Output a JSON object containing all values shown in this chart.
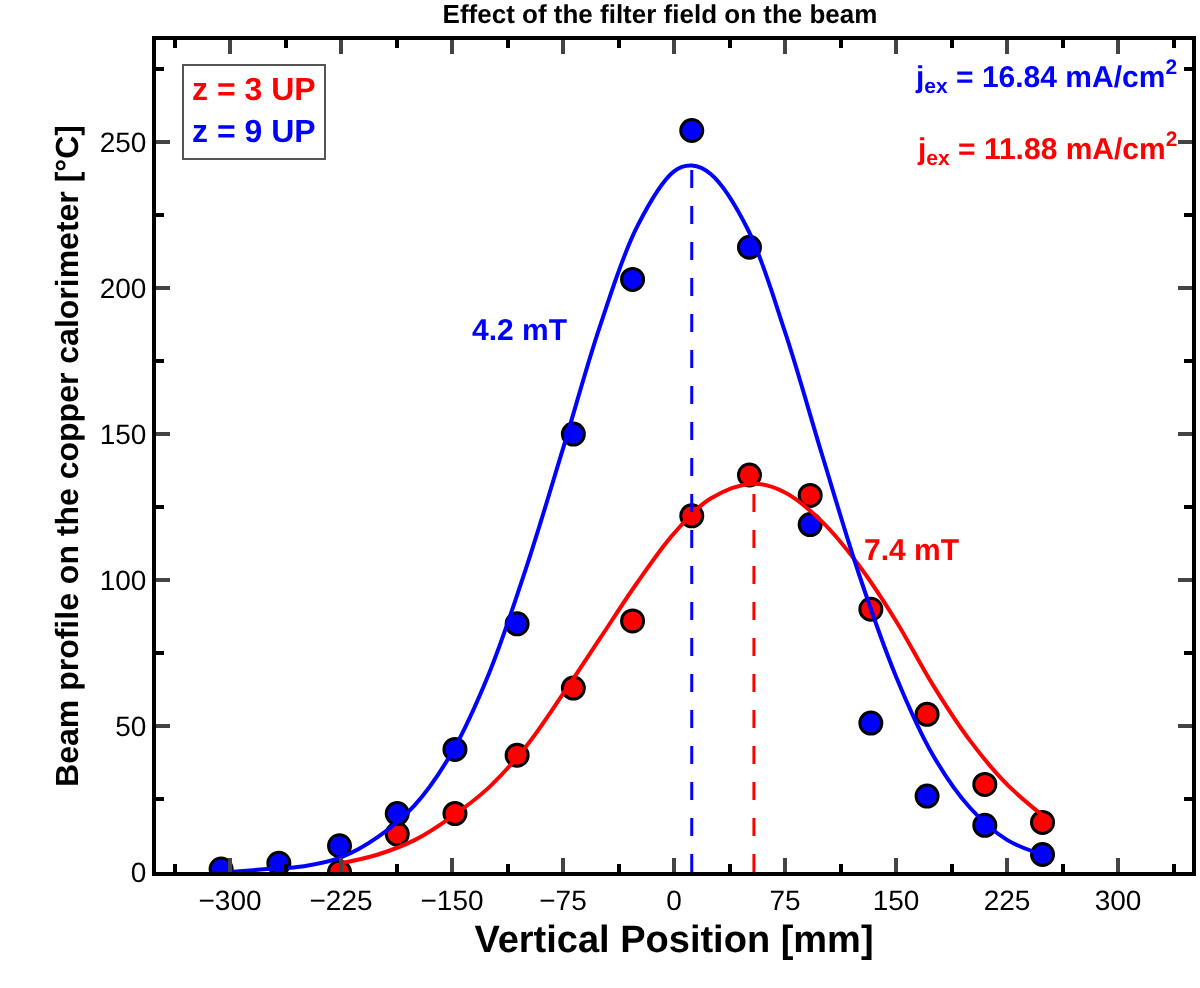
{
  "chart_data": {
    "type": "scatter",
    "title": "Effect of the filter field on the beam",
    "xlabel": "Vertical Position [mm]",
    "ylabel": "Beam profile on the copper calorimeter [°C]",
    "xlim": [
      -350,
      350
    ],
    "xticks": [
      -300,
      -225,
      -150,
      -75,
      0,
      75,
      150,
      225,
      300
    ],
    "ylim": [
      0,
      285
    ],
    "yticks": [
      0,
      50,
      100,
      150,
      200,
      250
    ],
    "grid": false,
    "legend": "top left",
    "marker": "circle",
    "series": [
      {
        "name": "z = 3 UP",
        "color": "#ff0000",
        "x": [
          -226,
          -187,
          -148,
          -106,
          -68,
          -28,
          12,
          51,
          92,
          133,
          171,
          210,
          249
        ],
        "values": [
          0,
          13,
          20,
          40,
          63,
          86,
          122,
          136,
          129,
          90,
          54,
          30,
          17
        ]
      },
      {
        "name": "z = 9 UP",
        "color": "#0000ff",
        "x": [
          -306,
          -267,
          -226,
          -187,
          -148,
          -106,
          -68,
          -28,
          12,
          51,
          92,
          133,
          171,
          210,
          249
        ],
        "values": [
          1,
          3,
          9,
          20,
          42,
          85,
          150,
          203,
          254,
          214,
          119,
          51,
          26,
          16,
          6
        ]
      },
      {
        "type": "line",
        "marker": "none",
        "color": "#ff0000",
        "x": [
          -225,
          -200,
          -175,
          -150,
          -125,
          -100,
          -75,
          -50,
          -25,
          0,
          25,
          54,
          75,
          100,
          125,
          150,
          175,
          200,
          225,
          255
        ],
        "values": [
          3,
          6,
          11,
          19,
          29,
          43,
          61,
          80,
          99,
          116,
          128,
          133,
          130,
          120,
          105,
          86,
          64,
          45,
          30,
          17
        ]
      },
      {
        "type": "line",
        "marker": "none",
        "color": "#0000ff",
        "x": [
          -300,
          -275,
          -250,
          -225,
          -200,
          -175,
          -150,
          -125,
          -100,
          -75,
          -50,
          -25,
          0,
          12,
          25,
          50,
          75,
          100,
          125,
          150,
          175,
          200,
          225,
          255
        ],
        "values": [
          0,
          1,
          2,
          5,
          12,
          23,
          41,
          68,
          104,
          145,
          187,
          221,
          240,
          242,
          239,
          220,
          185,
          143,
          102,
          67,
          40,
          22,
          11,
          5
        ]
      }
    ],
    "ref_lines": [
      {
        "axis": "x",
        "value": 12,
        "color": "#0000ff",
        "line_style": "dashed"
      },
      {
        "axis": "x",
        "value": 54,
        "color": "#ff0000",
        "line_style": "dashed"
      }
    ],
    "annotations": [
      "4.2 mT",
      "7.4 mT",
      "j$_{ex}$ = 16.84 mA/cm$^{2}$",
      "j$_{ex}$ = 11.88 mA/cm$^{2}$"
    ]
  }
}
